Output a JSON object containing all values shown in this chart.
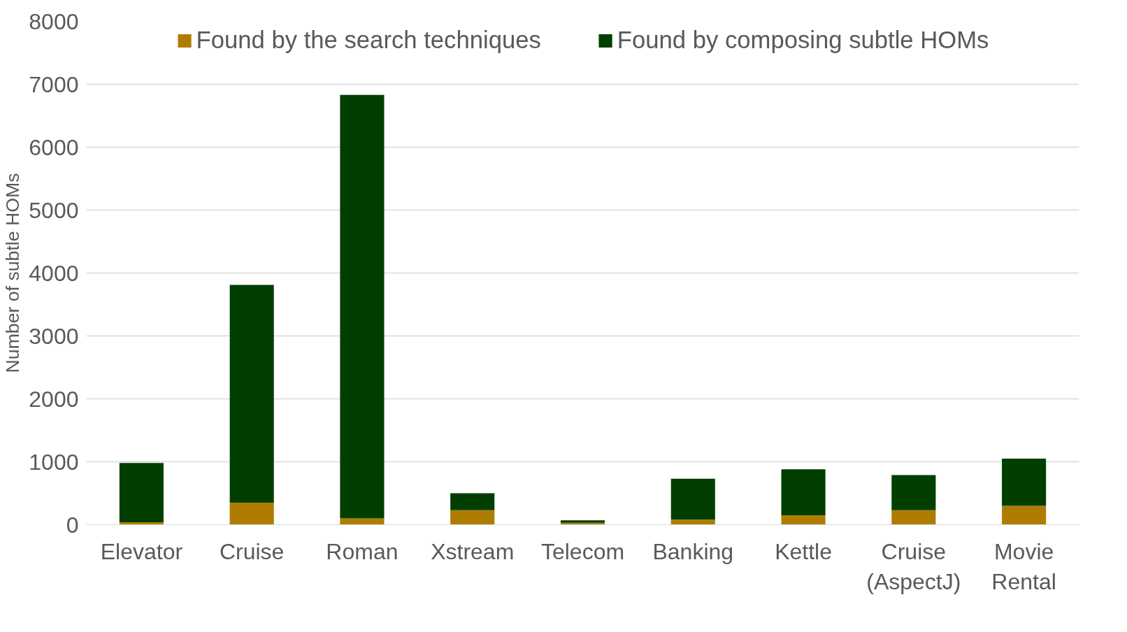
{
  "chart_data": {
    "type": "bar",
    "stacked": true,
    "ylabel": "Number of subtle HOMs",
    "categories": [
      "Elevator",
      "Cruise",
      "Roman",
      "Xstream",
      "Telecom",
      "Banking",
      "Kettle",
      "Cruise\n(AspectJ)",
      "Movie\nRental"
    ],
    "series": [
      {
        "name": "Found by the search techniques",
        "color": "#ae7d00",
        "values": [
          40,
          350,
          100,
          230,
          30,
          80,
          150,
          230,
          300
        ]
      },
      {
        "name": "Found by composing subtle HOMs",
        "color": "#003f00",
        "values": [
          940,
          3460,
          6730,
          270,
          40,
          650,
          730,
          560,
          750
        ]
      }
    ],
    "ylim": [
      0,
      8000
    ],
    "yticks": [
      0,
      1000,
      2000,
      3000,
      4000,
      5000,
      6000,
      7000,
      8000
    ],
    "grid": "y",
    "legend": "top"
  }
}
